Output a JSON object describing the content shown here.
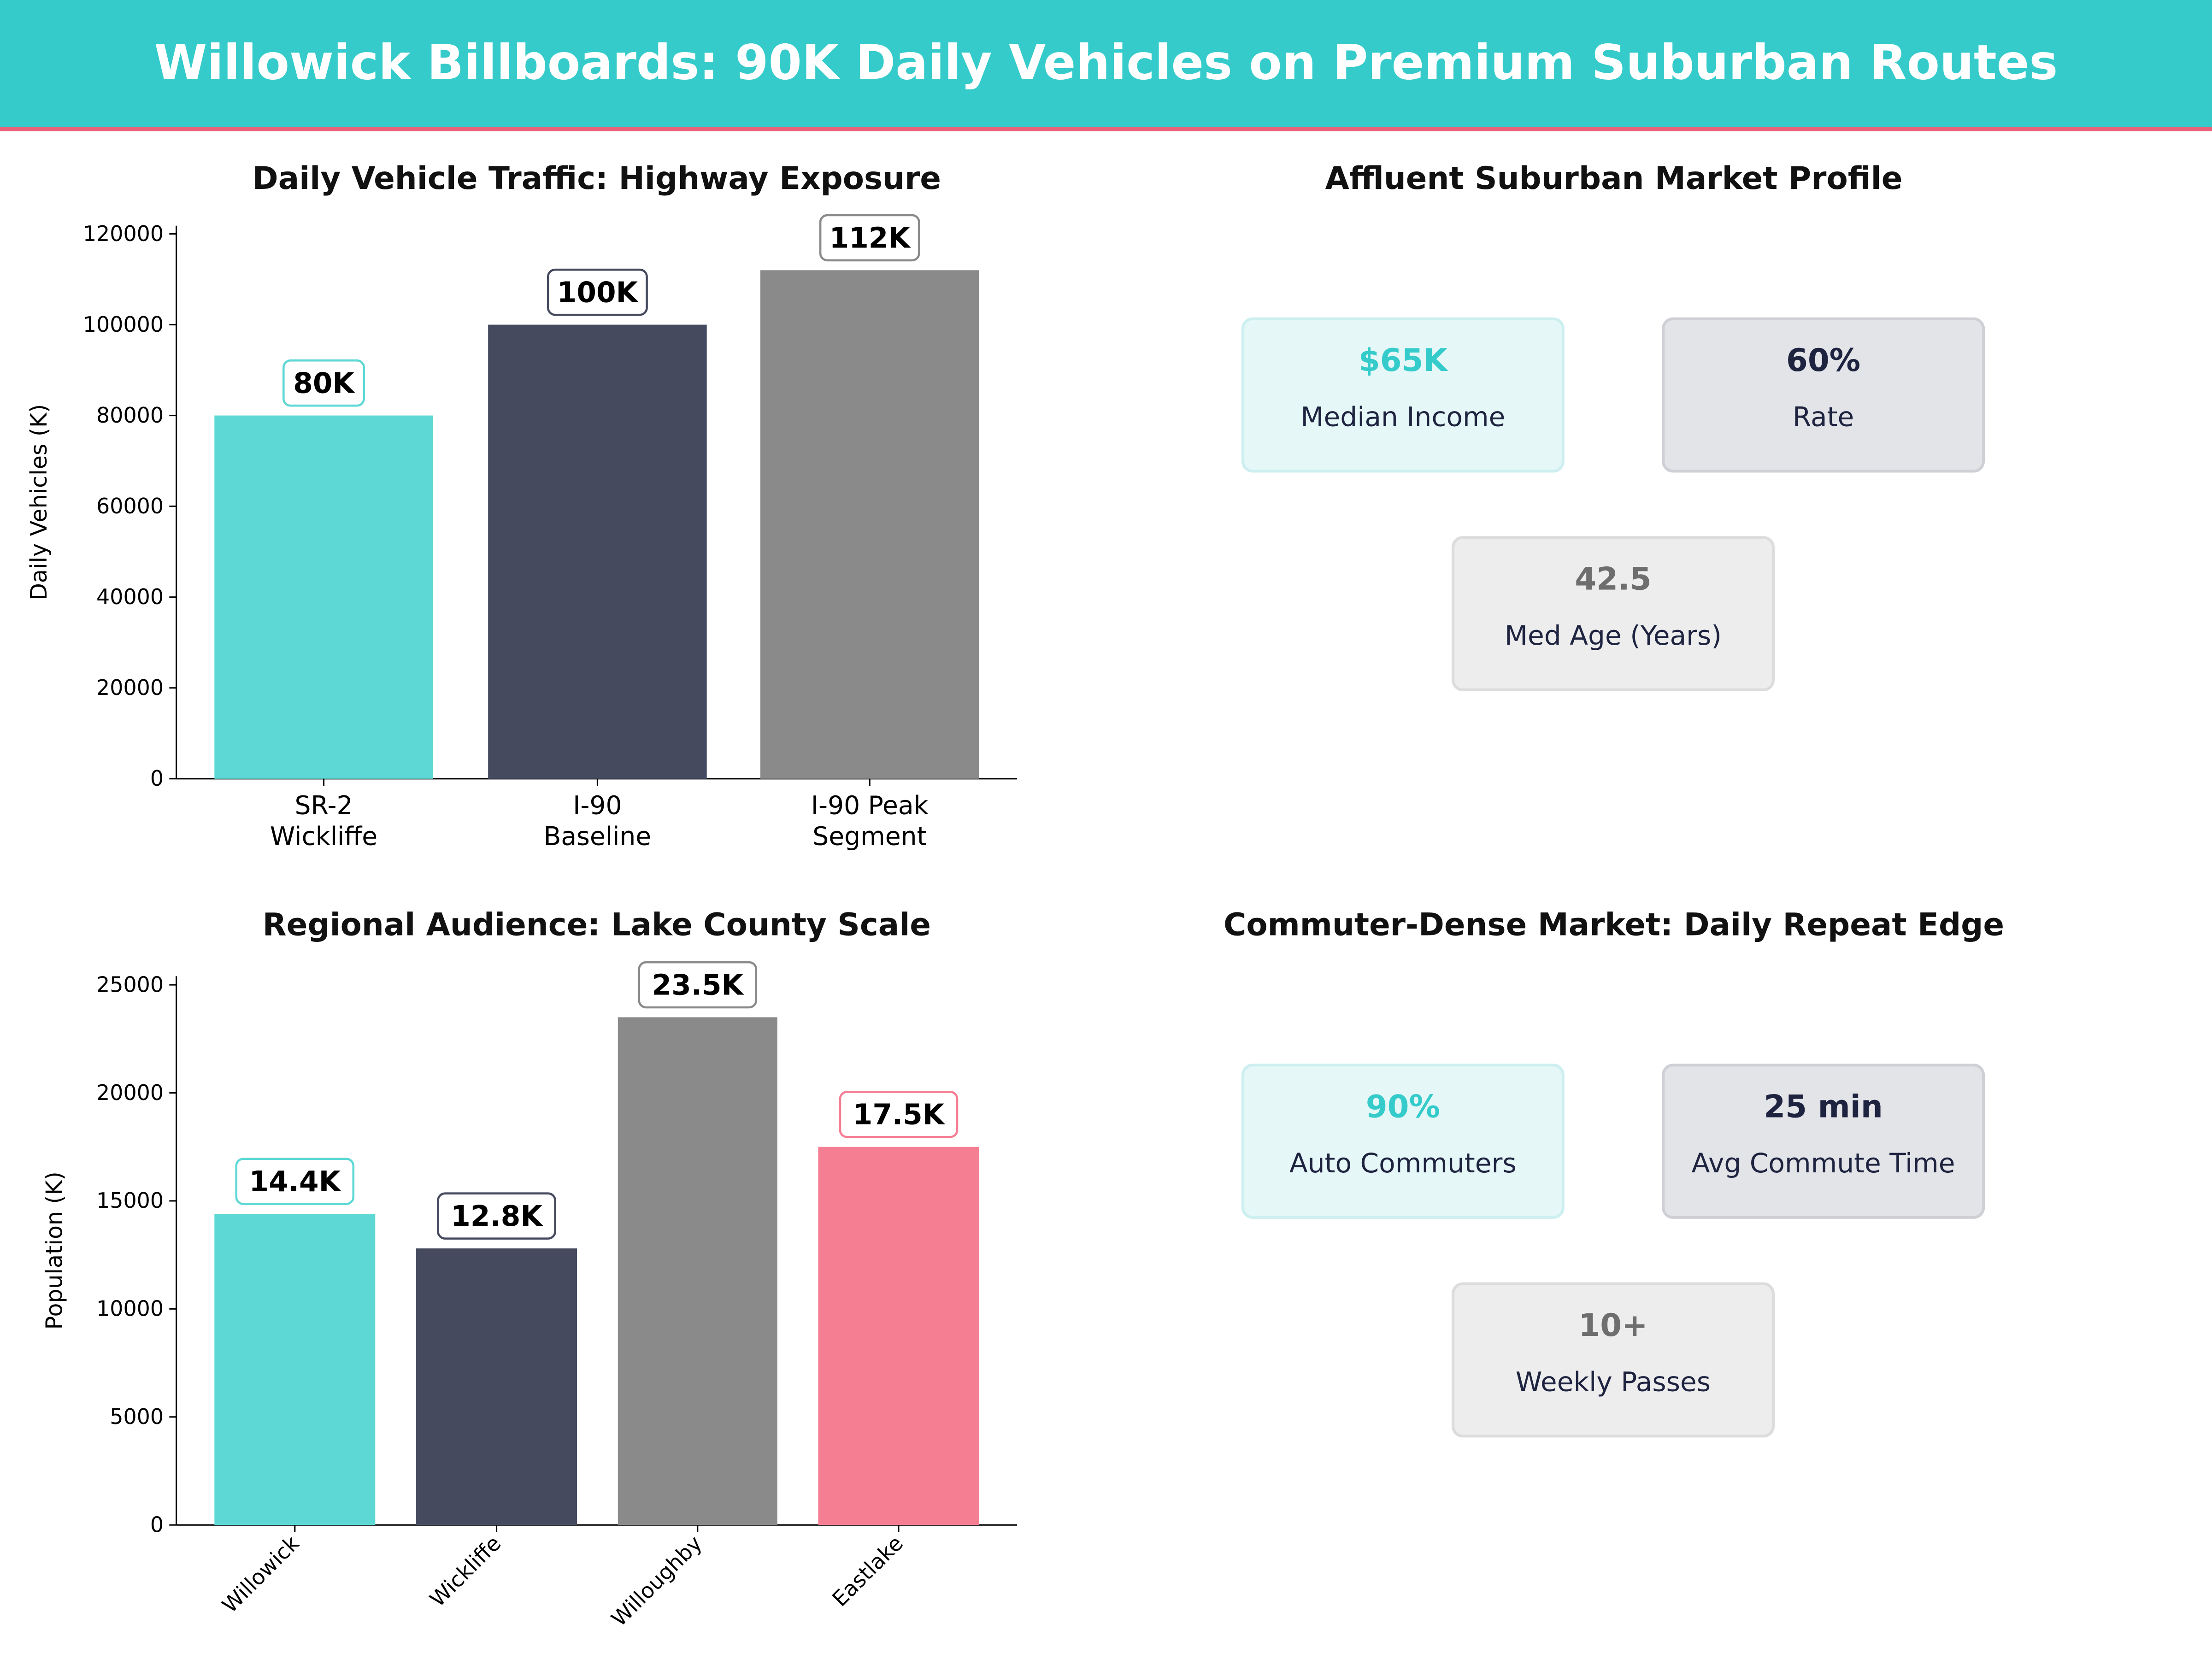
{
  "header": {
    "title": "Willowick Billboards: 90K Daily Vehicles on Premium Suburban Routes"
  },
  "colors": {
    "teal": "#35CBCB",
    "bar_teal": "#5DD8D4",
    "navy": "#454A5F",
    "gray": "#8A8A8A",
    "pink": "#F57E93",
    "accent_line": "#E8637A"
  },
  "chart_data": [
    {
      "type": "bar",
      "title": "Daily Vehicle Traffic: Highway Exposure",
      "xlabel": "",
      "ylabel": "Daily Vehicles (K)",
      "categories": [
        "SR-2\nWickliffe",
        "I-90\nBaseline",
        "I-90 Peak\nSegment"
      ],
      "values": [
        80000,
        100000,
        112000
      ],
      "data_labels": [
        "80K",
        "100K",
        "112K"
      ],
      "bar_colors": [
        "#5DD8D4",
        "#454A5F",
        "#8A8A8A"
      ],
      "ylim": [
        0,
        121800
      ],
      "yticks": [
        0,
        20000,
        40000,
        60000,
        80000,
        100000,
        120000
      ],
      "grid": false
    },
    {
      "type": "bar",
      "title": "Regional Audience: Lake County Scale",
      "xlabel": "",
      "ylabel": "Population (K)",
      "categories": [
        "Willowick",
        "Wickliffe",
        "Willoughby",
        "Eastlake"
      ],
      "values": [
        14400,
        12800,
        23500,
        17500
      ],
      "data_labels": [
        "14.4K",
        "12.8K",
        "23.5K",
        "17.5K"
      ],
      "bar_colors": [
        "#5DD8D4",
        "#454A5F",
        "#8A8A8A",
        "#F57E93"
      ],
      "ylim": [
        0,
        25400
      ],
      "yticks": [
        0,
        5000,
        10000,
        15000,
        20000,
        25000
      ],
      "xtick_rotation": 45,
      "grid": false
    }
  ],
  "panels": [
    {
      "title": "Affluent Suburban Market Profile",
      "cards": [
        {
          "value": "$65K",
          "label": "Median Income"
        },
        {
          "value": "60%",
          "label": "Rate"
        },
        {
          "value": "42.5",
          "label": "Med Age (Years)"
        }
      ]
    },
    {
      "title": "Commuter-Dense Market: Daily Repeat Edge",
      "cards": [
        {
          "value": "90%",
          "label": "Auto Commuters"
        },
        {
          "value": "25 min",
          "label": "Avg Commute Time"
        },
        {
          "value": "10+",
          "label": "Weekly Passes"
        }
      ]
    }
  ]
}
